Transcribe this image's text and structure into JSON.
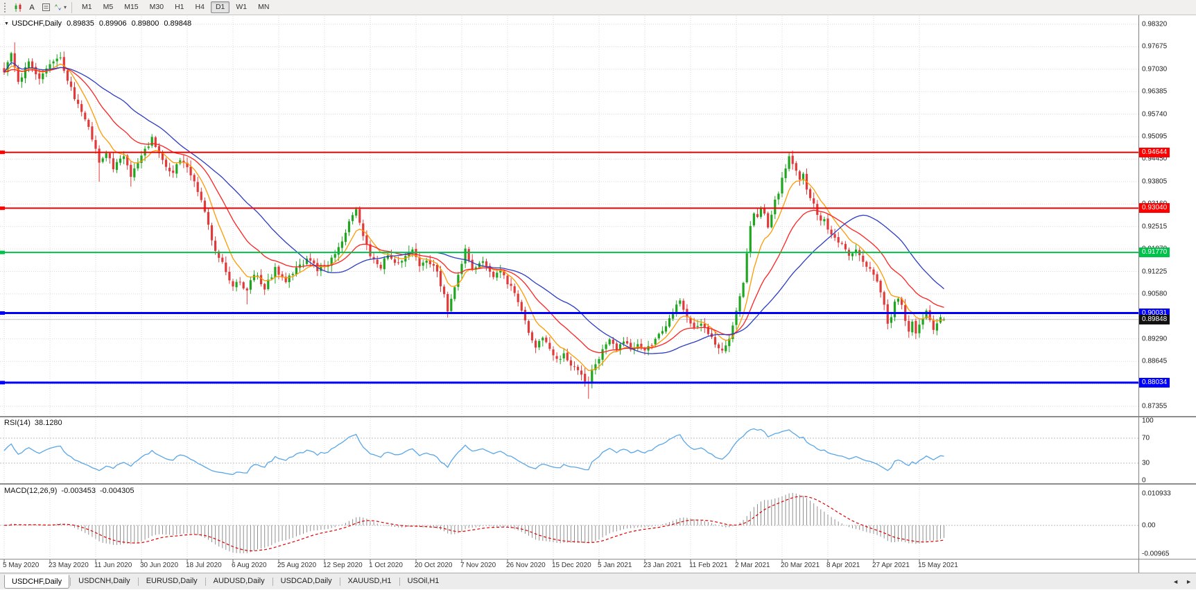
{
  "toolbar": {
    "a_label": "A",
    "timeframes": [
      "M1",
      "M5",
      "M15",
      "M30",
      "H1",
      "H4",
      "D1",
      "W1",
      "MN"
    ],
    "active_timeframe": "D1"
  },
  "icons": {
    "symbol_dropdown": "▼",
    "dropdown_caret": "▾",
    "tabs_scroll_left": "◄",
    "tabs_scroll_right": "►"
  },
  "header": {
    "symbol": "USDCHF,Daily",
    "open": "0.89835",
    "high": "0.89906",
    "low": "0.89800",
    "close": "0.89848"
  },
  "tabs": {
    "items": [
      {
        "label": "USDCHF,Daily",
        "active": true
      },
      {
        "label": "USDCNH,Daily",
        "active": false
      },
      {
        "label": "EURUSD,Daily",
        "active": false
      },
      {
        "label": "AUDUSD,Daily",
        "active": false
      },
      {
        "label": "USDCAD,Daily",
        "active": false
      },
      {
        "label": "XAUUSD,H1",
        "active": false
      },
      {
        "label": "USOil,H1",
        "active": false
      }
    ]
  },
  "chart_data": {
    "type": "candlestick",
    "symbol": "USDCHF",
    "period": "Daily",
    "title": "USDCHF,Daily",
    "bull_color": "#1fa51f",
    "bear_color": "#e03a3a",
    "x_axis_labels": [
      "5 May 2020",
      "23 May 2020",
      "11 Jun 2020",
      "30 Jun 2020",
      "18 Jul 2020",
      "6 Aug 2020",
      "25 Aug 2020",
      "12 Sep 2020",
      "1 Oct 2020",
      "20 Oct 2020",
      "7 Nov 2020",
      "26 Nov 2020",
      "15 Dec 2020",
      "5 Jan 2021",
      "23 Jan 2021",
      "11 Feb 2021",
      "2 Mar 2021",
      "20 Mar 2021",
      "8 Apr 2021",
      "27 Apr 2021",
      "15 May 2021"
    ],
    "bar_count": 268,
    "bars_per_x_label": 13,
    "price_axis": {
      "top_value": 0.9832,
      "bottom_value": 0.87355,
      "tick_step": 0.00645,
      "ticks": [
        "0.98320",
        "0.97675",
        "0.97030",
        "0.96385",
        "0.95740",
        "0.95095",
        "0.94450",
        "0.93805",
        "0.93160",
        "0.92515",
        "0.91870",
        "0.91225",
        "0.90580",
        "0.89935",
        "0.89290",
        "0.88645",
        "0.88000",
        "0.87355"
      ]
    },
    "last_bar": {
      "open": 0.89835,
      "high": 0.89906,
      "low": 0.898,
      "close": 0.89848
    },
    "close_waypoints": [
      [
        0,
        0.969
      ],
      [
        2,
        0.9748
      ],
      [
        4,
        0.966
      ],
      [
        7,
        0.9725
      ],
      [
        10,
        0.968
      ],
      [
        13,
        0.9712
      ],
      [
        16,
        0.9733
      ],
      [
        19,
        0.9645
      ],
      [
        22,
        0.9582
      ],
      [
        25,
        0.9508
      ],
      [
        27,
        0.9432
      ],
      [
        29,
        0.9465
      ],
      [
        31,
        0.9418
      ],
      [
        34,
        0.9458
      ],
      [
        36,
        0.9392
      ],
      [
        39,
        0.946
      ],
      [
        42,
        0.9502
      ],
      [
        45,
        0.9442
      ],
      [
        48,
        0.9402
      ],
      [
        50,
        0.9445
      ],
      [
        52,
        0.9415
      ],
      [
        54,
        0.9382
      ],
      [
        56,
        0.9322
      ],
      [
        58,
        0.9252
      ],
      [
        60,
        0.9185
      ],
      [
        63,
        0.9128
      ],
      [
        65,
        0.9078
      ],
      [
        67,
        0.9098
      ],
      [
        69,
        0.9062
      ],
      [
        71,
        0.9118
      ],
      [
        74,
        0.9075
      ],
      [
        77,
        0.9128
      ],
      [
        80,
        0.9095
      ],
      [
        83,
        0.9132
      ],
      [
        86,
        0.9158
      ],
      [
        89,
        0.913
      ],
      [
        92,
        0.9148
      ],
      [
        95,
        0.9192
      ],
      [
        98,
        0.9262
      ],
      [
        100,
        0.9295
      ],
      [
        102,
        0.9228
      ],
      [
        104,
        0.9162
      ],
      [
        107,
        0.9136
      ],
      [
        109,
        0.917
      ],
      [
        111,
        0.9142
      ],
      [
        114,
        0.9166
      ],
      [
        116,
        0.9186
      ],
      [
        118,
        0.9142
      ],
      [
        120,
        0.9156
      ],
      [
        123,
        0.9122
      ],
      [
        126,
        0.9015
      ],
      [
        128,
        0.9082
      ],
      [
        130,
        0.9142
      ],
      [
        131,
        0.9186
      ],
      [
        133,
        0.913
      ],
      [
        136,
        0.915
      ],
      [
        139,
        0.9112
      ],
      [
        141,
        0.9126
      ],
      [
        143,
        0.9092
      ],
      [
        145,
        0.9056
      ],
      [
        147,
        0.9012
      ],
      [
        149,
        0.8952
      ],
      [
        151,
        0.8906
      ],
      [
        153,
        0.8936
      ],
      [
        155,
        0.8896
      ],
      [
        157,
        0.8866
      ],
      [
        159,
        0.8886
      ],
      [
        161,
        0.8856
      ],
      [
        163,
        0.8836
      ],
      [
        165,
        0.8806
      ],
      [
        166,
        0.8812
      ],
      [
        168,
        0.8856
      ],
      [
        170,
        0.8896
      ],
      [
        172,
        0.8922
      ],
      [
        174,
        0.8896
      ],
      [
        176,
        0.8922
      ],
      [
        178,
        0.8896
      ],
      [
        180,
        0.8912
      ],
      [
        182,
        0.8892
      ],
      [
        185,
        0.8926
      ],
      [
        188,
        0.8972
      ],
      [
        190,
        0.9012
      ],
      [
        192,
        0.9036
      ],
      [
        194,
        0.8992
      ],
      [
        196,
        0.8956
      ],
      [
        198,
        0.8976
      ],
      [
        200,
        0.8942
      ],
      [
        202,
        0.8912
      ],
      [
        204,
        0.8892
      ],
      [
        206,
        0.8936
      ],
      [
        208,
        0.9008
      ],
      [
        210,
        0.9092
      ],
      [
        211,
        0.918
      ],
      [
        212,
        0.9252
      ],
      [
        213,
        0.9292
      ],
      [
        214,
        0.9272
      ],
      [
        215,
        0.9302
      ],
      [
        216,
        0.9282
      ],
      [
        217,
        0.9256
      ],
      [
        218,
        0.9292
      ],
      [
        219,
        0.9322
      ],
      [
        220,
        0.9352
      ],
      [
        221,
        0.9388
      ],
      [
        222,
        0.9422
      ],
      [
        223,
        0.9452
      ],
      [
        224,
        0.9432
      ],
      [
        225,
        0.9406
      ],
      [
        226,
        0.9382
      ],
      [
        227,
        0.9396
      ],
      [
        228,
        0.9362
      ],
      [
        229,
        0.9332
      ],
      [
        230,
        0.9312
      ],
      [
        231,
        0.9286
      ],
      [
        232,
        0.9262
      ],
      [
        233,
        0.9272
      ],
      [
        234,
        0.9246
      ],
      [
        236,
        0.9222
      ],
      [
        238,
        0.9196
      ],
      [
        240,
        0.9172
      ],
      [
        242,
        0.9186
      ],
      [
        244,
        0.9152
      ],
      [
        246,
        0.9126
      ],
      [
        247,
        0.9112
      ],
      [
        249,
        0.9062
      ],
      [
        250,
        0.9022
      ],
      [
        251,
        0.8978
      ],
      [
        252,
        0.8996
      ],
      [
        253,
        0.9032
      ],
      [
        254,
        0.9048
      ],
      [
        255,
        0.9022
      ],
      [
        256,
        0.8986
      ],
      [
        257,
        0.8956
      ],
      [
        258,
        0.8976
      ],
      [
        259,
        0.8942
      ],
      [
        260,
        0.8966
      ],
      [
        261,
        0.8992
      ],
      [
        262,
        0.9012
      ],
      [
        263,
        0.8982
      ],
      [
        264,
        0.8956
      ],
      [
        265,
        0.8976
      ],
      [
        266,
        0.8992
      ],
      [
        267,
        0.89848
      ]
    ],
    "wick_overrides": {
      "3": {
        "high": 0.978
      },
      "27": {
        "low": 0.938
      },
      "36": {
        "low": 0.9366
      },
      "69": {
        "low": 0.9028
      },
      "126": {
        "low": 0.899
      },
      "166": {
        "low": 0.8757
      },
      "223": {
        "high": 0.9465
      }
    },
    "horizontal_lines": [
      {
        "label": "0.94644",
        "price": 0.94644,
        "color": "#ff0000",
        "width": 2
      },
      {
        "label": "0.93040",
        "price": 0.9304,
        "color": "#ff0000",
        "width": 2
      },
      {
        "label": "0.91770",
        "price": 0.9177,
        "color": "#00c24a",
        "width": 2
      },
      {
        "label": "0.90031",
        "price": 0.90031,
        "color": "#0000ff",
        "width": 3
      },
      {
        "label": "0.88034",
        "price": 0.88034,
        "color": "#0000ff",
        "width": 3
      }
    ],
    "current_price": {
      "label": "0.89848",
      "value": 0.89848,
      "tag_color": "#111111"
    },
    "moving_averages": [
      {
        "period": 8,
        "method": "ema",
        "color": "#ff9900"
      },
      {
        "period": 21,
        "method": "ema",
        "color": "#ff2020"
      },
      {
        "period": 34,
        "method": "sma",
        "color": "#2b3cc4"
      }
    ],
    "indicators": {
      "rsi": {
        "label": "RSI(14)",
        "value_text": "38.1280",
        "period": 14,
        "levels": [
          70,
          30
        ],
        "scale_labels": [
          "100",
          "70",
          "30",
          "0"
        ],
        "line_color": "#58a6e8"
      },
      "macd": {
        "label": "MACD(12,26,9)",
        "value_main_text": "-0.003453",
        "value_signal_text": "-0.004305",
        "fast": 12,
        "slow": 26,
        "signal": 9,
        "scale_labels": [
          "0.010933",
          "0.00",
          "-0.00965"
        ],
        "scale_max": 0.010933,
        "scale_min": -0.00965,
        "histogram_color": "#8f8f8f",
        "signal_color": "#e00000"
      }
    }
  }
}
